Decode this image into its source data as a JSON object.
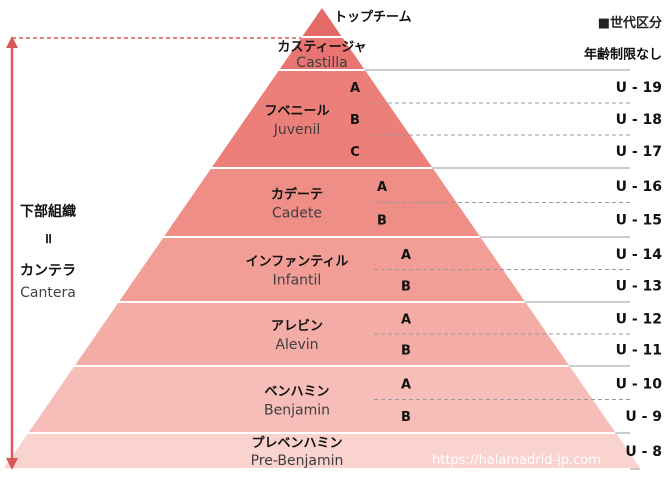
{
  "header": {
    "section_label": "■世代区分"
  },
  "top": {
    "label": "トップチーム"
  },
  "tiers": [
    {
      "jp": "カスティージャ",
      "en": "Castilla",
      "color": "#e87571",
      "subs": [],
      "ages": [
        "年齢制限なし"
      ]
    },
    {
      "jp": "フベニール",
      "en": "Juvenil",
      "color": "#ec7f79",
      "subs": [
        "A",
        "B",
        "C"
      ],
      "ages": [
        "U - 19",
        "U - 18",
        "U - 17"
      ]
    },
    {
      "jp": "カデーテ",
      "en": "Cadete",
      "color": "#ef8e86",
      "subs": [
        "A",
        "B"
      ],
      "ages": [
        "U - 16",
        "U - 15"
      ]
    },
    {
      "jp": "インファンティル",
      "en": "Infantil",
      "color": "#f29d96",
      "subs": [
        "A",
        "B"
      ],
      "ages": [
        "U - 14",
        "U - 13"
      ]
    },
    {
      "jp": "アレビン",
      "en": "Alevin",
      "color": "#f4aca6",
      "subs": [
        "A",
        "B"
      ],
      "ages": [
        "U - 12",
        "U - 11"
      ]
    },
    {
      "jp": "ベンハミン",
      "en": "Benjamin",
      "color": "#f7bdb8",
      "subs": [
        "A",
        "B"
      ],
      "ages": [
        "U - 10",
        "U - 9"
      ]
    },
    {
      "jp": "プレベンハミン",
      "en": "Pre-Benjamin",
      "color": "#fad2ce",
      "subs": [],
      "ages": [
        "U - 8"
      ]
    }
  ],
  "top_color": "#e46a67",
  "arrow_color": "#d9585a",
  "side": {
    "line1": "下部組織",
    "line2": "॥",
    "line3": "カンテラ",
    "line4": "Cantera"
  },
  "watermark": "https://halamadrid-jp.com"
}
